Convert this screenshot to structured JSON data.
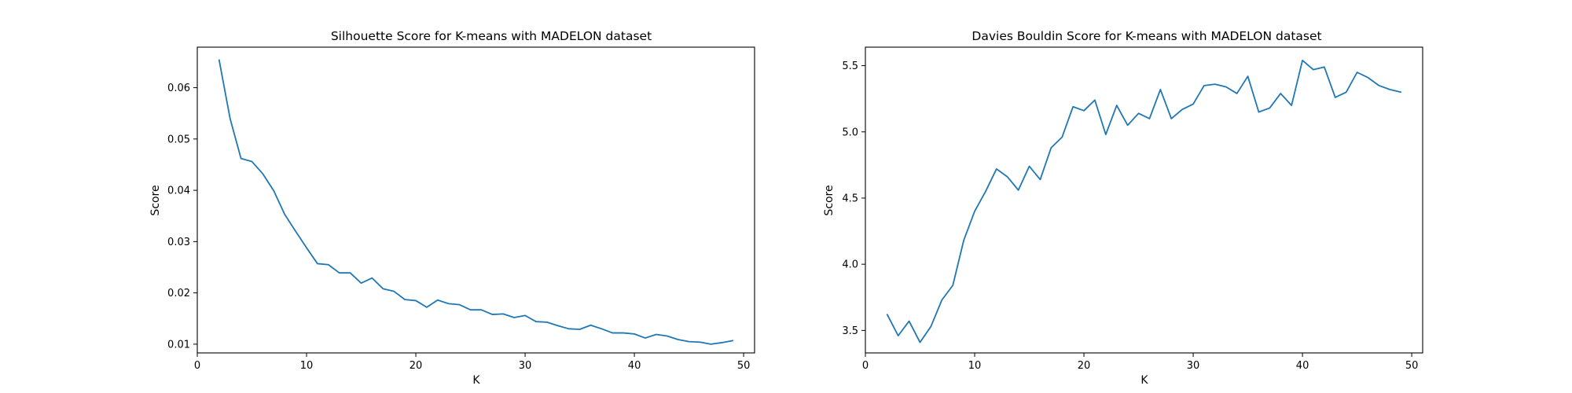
{
  "colors": {
    "series": "#1f77b4",
    "axis": "#000000",
    "background": "#ffffff"
  },
  "chart_data": [
    {
      "type": "line",
      "title": "Silhouette Score for K-means with MADELON dataset",
      "xlabel": "K",
      "ylabel": "Score",
      "xlim": [
        0,
        51
      ],
      "ylim": [
        0.0083,
        0.0679
      ],
      "xticks": [
        0,
        10,
        20,
        30,
        40,
        50
      ],
      "xtick_labels": [
        "0",
        "10",
        "20",
        "30",
        "40",
        "50"
      ],
      "yticks": [
        0.01,
        0.02,
        0.03,
        0.04,
        0.05,
        0.06
      ],
      "ytick_labels": [
        "0.01",
        "0.02",
        "0.03",
        "0.04",
        "0.05",
        "0.06"
      ],
      "grid": false,
      "x": [
        2,
        3,
        4,
        5,
        6,
        7,
        8,
        9,
        10,
        11,
        12,
        13,
        14,
        15,
        16,
        17,
        18,
        19,
        20,
        21,
        22,
        23,
        24,
        25,
        26,
        27,
        28,
        29,
        30,
        31,
        32,
        33,
        34,
        35,
        36,
        37,
        38,
        39,
        40,
        41,
        42,
        43,
        44,
        45,
        46,
        47,
        48,
        49
      ],
      "series": [
        {
          "values": [
            0.0654,
            0.054,
            0.0462,
            0.0456,
            0.0432,
            0.0399,
            0.0353,
            0.032,
            0.0288,
            0.0257,
            0.0255,
            0.0239,
            0.0239,
            0.0219,
            0.0229,
            0.0208,
            0.0203,
            0.0187,
            0.0185,
            0.0172,
            0.0186,
            0.0179,
            0.0177,
            0.0167,
            0.0167,
            0.0158,
            0.0159,
            0.0152,
            0.0156,
            0.0144,
            0.0143,
            0.0136,
            0.013,
            0.0129,
            0.0137,
            0.013,
            0.0122,
            0.0122,
            0.012,
            0.0112,
            0.0119,
            0.0116,
            0.0109,
            0.0105,
            0.0104,
            0.01,
            0.0103,
            0.0107
          ]
        }
      ]
    },
    {
      "type": "line",
      "title": "Davies Bouldin Score for K-means with MADELON dataset",
      "xlabel": "K",
      "ylabel": "Score",
      "xlim": [
        0,
        51
      ],
      "ylim": [
        3.33,
        5.64
      ],
      "xticks": [
        0,
        10,
        20,
        30,
        40,
        50
      ],
      "xtick_labels": [
        "0",
        "10",
        "20",
        "30",
        "40",
        "50"
      ],
      "yticks": [
        3.5,
        4.0,
        4.5,
        5.0,
        5.5
      ],
      "ytick_labels": [
        "3.5",
        "4.0",
        "4.5",
        "5.0",
        "5.5"
      ],
      "grid": false,
      "x": [
        2,
        3,
        4,
        5,
        6,
        7,
        8,
        9,
        10,
        11,
        12,
        13,
        14,
        15,
        16,
        17,
        18,
        19,
        20,
        21,
        22,
        23,
        24,
        25,
        26,
        27,
        28,
        29,
        30,
        31,
        32,
        33,
        34,
        35,
        36,
        37,
        38,
        39,
        40,
        41,
        42,
        43,
        44,
        45,
        46,
        47,
        48,
        49
      ],
      "series": [
        {
          "values": [
            3.62,
            3.46,
            3.57,
            3.41,
            3.53,
            3.73,
            3.84,
            4.18,
            4.4,
            4.55,
            4.72,
            4.66,
            4.56,
            4.74,
            4.64,
            4.88,
            4.96,
            5.19,
            5.16,
            5.24,
            4.98,
            5.2,
            5.05,
            5.14,
            5.1,
            5.32,
            5.1,
            5.17,
            5.21,
            5.35,
            5.36,
            5.34,
            5.29,
            5.42,
            5.15,
            5.18,
            5.29,
            5.2,
            5.54,
            5.47,
            5.49,
            5.26,
            5.3,
            5.45,
            5.41,
            5.35,
            5.32,
            5.3
          ]
        }
      ]
    }
  ]
}
